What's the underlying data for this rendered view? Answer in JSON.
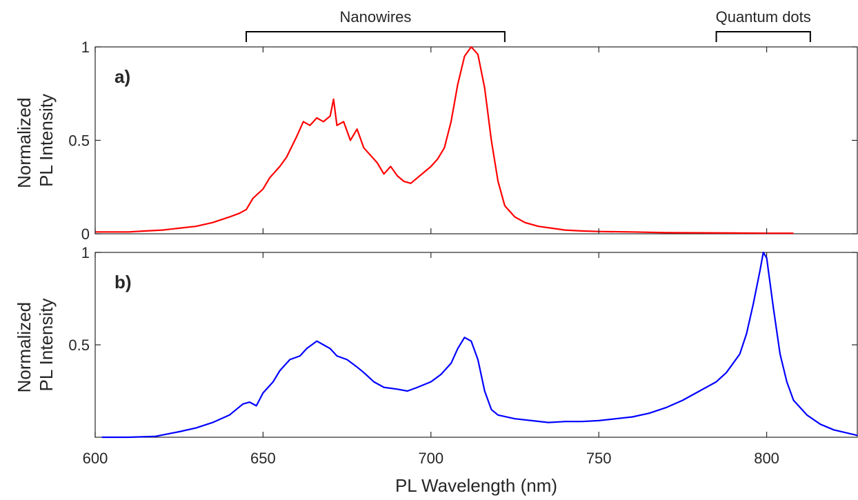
{
  "annotations": {
    "nanowires": "Nanowires",
    "quantum_dots": "Quantum dots",
    "nanowires_range": [
      645,
      722
    ],
    "quantum_dots_range": [
      785,
      813
    ]
  },
  "chart_data": [
    {
      "type": "line",
      "panel_label": "a)",
      "ylabel": [
        "Normalized",
        "PL Intensity"
      ],
      "xlim": [
        600,
        827
      ],
      "ylim": [
        0,
        1
      ],
      "yticks": [
        0,
        0.5,
        1
      ],
      "ytick_labels": [
        "0",
        "0.5",
        "1"
      ],
      "color": "#ff0000",
      "series": [
        {
          "x": [
            600,
            605,
            610,
            615,
            620,
            625,
            630,
            635,
            640,
            643,
            645,
            647,
            650,
            652,
            655,
            657,
            660,
            662,
            664,
            666,
            668,
            670,
            671,
            672,
            674,
            676,
            678,
            680,
            682,
            684,
            686,
            688,
            690,
            692,
            694,
            696,
            698,
            700,
            702,
            704,
            706,
            708,
            710,
            712,
            714,
            716,
            718,
            720,
            722,
            725,
            728,
            732,
            736,
            740,
            745,
            750,
            760,
            770,
            780,
            790,
            800,
            808
          ],
          "y": [
            0.01,
            0.01,
            0.01,
            0.015,
            0.02,
            0.03,
            0.04,
            0.06,
            0.09,
            0.11,
            0.13,
            0.19,
            0.24,
            0.3,
            0.36,
            0.41,
            0.52,
            0.6,
            0.58,
            0.62,
            0.6,
            0.63,
            0.72,
            0.58,
            0.6,
            0.5,
            0.56,
            0.46,
            0.42,
            0.38,
            0.32,
            0.36,
            0.31,
            0.28,
            0.27,
            0.3,
            0.33,
            0.36,
            0.4,
            0.46,
            0.6,
            0.8,
            0.95,
            1.0,
            0.96,
            0.78,
            0.5,
            0.28,
            0.15,
            0.09,
            0.06,
            0.04,
            0.03,
            0.02,
            0.015,
            0.012,
            0.01,
            0.006,
            0.005,
            0.004,
            0.003,
            0.003
          ]
        }
      ]
    },
    {
      "type": "line",
      "panel_label": "b)",
      "ylabel": [
        "Normalized",
        "PL Intensity"
      ],
      "xlabel": "PL Wavelength (nm)",
      "xlim": [
        600,
        827
      ],
      "ylim": [
        0,
        1
      ],
      "xticks": [
        600,
        650,
        700,
        750,
        800
      ],
      "xtick_labels": [
        "600",
        "650",
        "700",
        "750",
        "800"
      ],
      "yticks": [
        0.5,
        1
      ],
      "ytick_labels": [
        "0.5",
        "1"
      ],
      "color": "#0000ff",
      "series": [
        {
          "x": [
            602,
            610,
            618,
            625,
            630,
            635,
            640,
            644,
            646,
            648,
            650,
            653,
            655,
            658,
            661,
            663,
            666,
            668,
            670,
            672,
            675,
            678,
            680,
            683,
            686,
            690,
            693,
            696,
            700,
            703,
            706,
            708,
            710,
            712,
            714,
            716,
            718,
            720,
            725,
            730,
            735,
            740,
            745,
            750,
            755,
            760,
            765,
            770,
            775,
            780,
            785,
            788,
            790,
            792,
            794,
            796,
            798,
            799,
            800,
            802,
            804,
            806,
            808,
            812,
            816,
            820,
            827
          ],
          "y": [
            0.0,
            0.0,
            0.005,
            0.03,
            0.05,
            0.08,
            0.12,
            0.18,
            0.19,
            0.17,
            0.24,
            0.3,
            0.36,
            0.42,
            0.44,
            0.48,
            0.52,
            0.5,
            0.48,
            0.44,
            0.42,
            0.38,
            0.35,
            0.3,
            0.27,
            0.26,
            0.25,
            0.27,
            0.3,
            0.34,
            0.4,
            0.48,
            0.54,
            0.52,
            0.42,
            0.25,
            0.15,
            0.12,
            0.1,
            0.09,
            0.08,
            0.085,
            0.085,
            0.09,
            0.1,
            0.11,
            0.13,
            0.16,
            0.2,
            0.25,
            0.3,
            0.35,
            0.4,
            0.45,
            0.56,
            0.72,
            0.9,
            1.0,
            0.97,
            0.7,
            0.45,
            0.3,
            0.2,
            0.12,
            0.07,
            0.04,
            0.01
          ]
        }
      ]
    }
  ]
}
